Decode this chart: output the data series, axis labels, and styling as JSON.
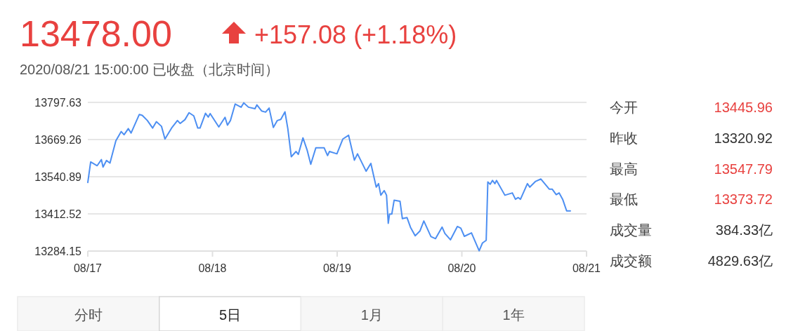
{
  "chart_data": [
    {
      "type": "line",
      "title": "13478.00",
      "subtitle": "2020/08/21 15:00:00 已收盘（北京时间）",
      "annotations": [
        "+157.08 (+1.18%)",
        "分时",
        "5日",
        "1月",
        "1年"
      ],
      "series": [
        {
          "color": "#4d8ff2",
          "x": [
            "2020-08-17T00:00",
            "2020-08-17T00:33",
            "2020-08-17T01:48",
            "2020-08-17T02:37",
            "2020-08-17T02:56",
            "2020-08-17T03:36",
            "2020-08-17T04:16",
            "2020-08-17T05:24",
            "2020-08-17T06:26",
            "2020-08-17T06:59",
            "2020-08-17T07:48",
            "2020-08-17T08:20",
            "2020-08-17T09:55",
            "2020-08-17T10:29",
            "2020-08-17T11:28",
            "2020-08-17T12:29",
            "2020-08-17T13:12",
            "2020-08-17T14:11",
            "2020-08-17T14:51",
            "2020-08-17T16:12",
            "2020-08-17T17:15",
            "2020-08-17T17:47",
            "2020-08-17T18:42",
            "2020-08-17T19:29",
            "2020-08-17T20:24",
            "2020-08-17T21:10",
            "2020-08-17T21:36",
            "2020-08-17T22:39",
            "2020-08-17T23:11",
            "2020-08-17T23:33",
            "2020-08-18T01:13",
            "2020-08-18T02:25",
            "2020-08-18T02:53",
            "2020-08-18T03:27",
            "2020-08-18T04:22",
            "2020-08-18T05:30",
            "2020-08-18T06:01",
            "2020-08-18T06:56",
            "2020-08-18T08:11",
            "2020-08-18T08:33",
            "2020-08-18T09:27",
            "2020-08-18T10:13",
            "2020-08-18T10:54",
            "2020-08-18T11:43",
            "2020-08-18T12:29",
            "2020-08-18T13:09",
            "2020-08-18T13:57",
            "2020-08-18T14:30",
            "2020-08-18T15:10",
            "2020-08-18T16:05",
            "2020-08-18T16:31",
            "2020-08-18T17:25",
            "2020-08-18T18:12",
            "2020-08-18T18:55",
            "2020-08-18T19:54",
            "2020-08-18T21:29",
            "2020-08-18T22:09",
            "2020-08-18T22:31",
            "2020-08-18T23:57",
            "2020-08-19T01:05",
            "2020-08-19T02:12",
            "2020-08-19T03:19",
            "2020-08-19T03:55",
            "2020-08-19T05:34",
            "2020-08-19T06:29",
            "2020-08-19T07:31",
            "2020-08-19T07:58",
            "2020-08-19T08:24",
            "2020-08-19T09:03",
            "2020-08-19T09:30",
            "2020-08-19T09:50",
            "2020-08-19T10:05",
            "2020-08-19T10:31",
            "2020-08-19T10:58",
            "2020-08-19T12:06",
            "2020-08-19T12:33",
            "2020-08-19T13:26",
            "2020-08-19T14:07",
            "2020-08-19T15:01",
            "2020-08-19T15:55",
            "2020-08-19T16:41",
            "2020-08-19T18:03",
            "2020-08-19T18:56",
            "2020-08-19T20:12",
            "2020-08-19T20:44",
            "2020-08-19T21:48",
            "2020-08-19T23:08",
            "2020-08-19T23:48",
            "2020-08-20T00:29",
            "2020-08-20T01:51",
            "2020-08-20T02:25",
            "2020-08-20T03:20",
            "2020-08-20T03:58",
            "2020-08-20T04:41",
            "2020-08-20T05:00",
            "2020-08-20T05:27",
            "2020-08-20T05:54",
            "2020-08-20T06:22",
            "2020-08-20T06:40",
            "2020-08-20T08:17",
            "2020-08-20T09:43",
            "2020-08-20T10:19",
            "2020-08-20T10:51",
            "2020-08-20T11:17",
            "2020-08-20T12:37",
            "2020-08-20T13:05",
            "2020-08-20T14:12",
            "2020-08-20T15:13",
            "2020-08-20T16:49",
            "2020-08-20T17:23",
            "2020-08-20T18:10",
            "2020-08-20T18:43",
            "2020-08-20T19:24",
            "2020-08-20T20:10",
            "2020-08-20T20:53"
          ],
          "values": [
            13521,
            13592,
            13579,
            13600,
            13574,
            13597,
            13588,
            13665,
            13697,
            13686,
            13707,
            13692,
            13756,
            13753,
            13735,
            13709,
            13731,
            13715,
            13671,
            13711,
            13735,
            13725,
            13738,
            13762,
            13751,
            13709,
            13709,
            13760,
            13747,
            13759,
            13713,
            13746,
            13719,
            13735,
            13792,
            13781,
            13796,
            13781,
            13776,
            13789,
            13768,
            13764,
            13778,
            13711,
            13735,
            13739,
            13765,
            13707,
            13610,
            13628,
            13618,
            13675,
            13634,
            13584,
            13641,
            13641,
            13614,
            13628,
            13620,
            13671,
            13684,
            13598,
            13620,
            13560,
            13587,
            13505,
            13517,
            13477,
            13493,
            13477,
            13380,
            13412,
            13412,
            13460,
            13456,
            13396,
            13400,
            13366,
            13337,
            13353,
            13388,
            13334,
            13327,
            13367,
            13345,
            13323,
            13369,
            13363,
            13335,
            13347,
            13323,
            13285,
            13312,
            13321,
            13523,
            13515,
            13528,
            13517,
            13528,
            13477,
            13485,
            13463,
            13469,
            13463,
            13517,
            13505,
            13525,
            13533,
            13498,
            13498,
            13479,
            13485,
            13463,
            13423,
            13423
          ]
        }
      ],
      "xlim": [
        "2020-08-17",
        "2020-08-21"
      ],
      "xticks": [
        {
          "value": "2020-08-17",
          "label": "08/17"
        },
        {
          "value": "2020-08-18",
          "label": "08/18"
        },
        {
          "value": "2020-08-19",
          "label": "08/19"
        },
        {
          "value": "2020-08-20",
          "label": "08/20"
        },
        {
          "value": "2020-08-21",
          "label": "08/21"
        }
      ],
      "ylim": [
        13284.15,
        13797.63
      ],
      "yticks": [
        13284.15,
        13412.52,
        13540.89,
        13669.26,
        13797.63
      ],
      "grid": "y"
    },
    {
      "type": "other",
      "categories": [
        "今开",
        "昨收",
        "最高",
        "最低",
        "成交量",
        "成交额"
      ],
      "value_labels": [
        "13445.96",
        "13320.92",
        "13547.79",
        "13373.72",
        "384.33亿",
        "4829.63亿"
      ],
      "colors": [
        "#e8413f",
        "#333333",
        "#e8413f",
        "#e8413f",
        "#333333",
        "#333333"
      ]
    }
  ]
}
